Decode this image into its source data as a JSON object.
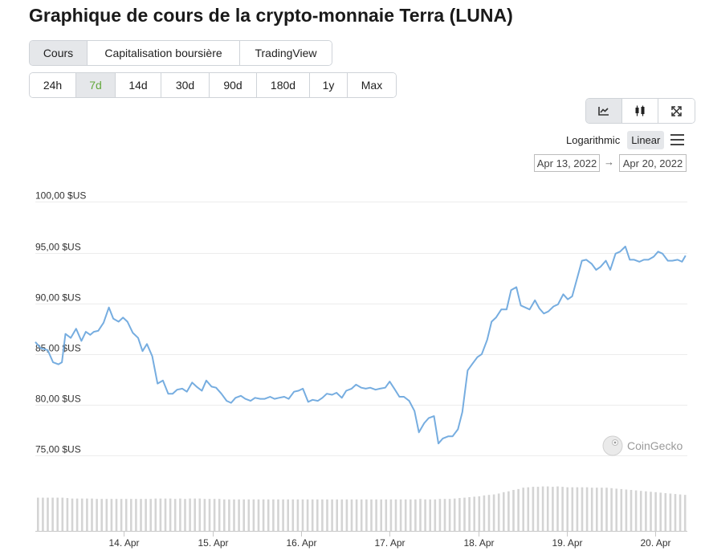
{
  "page_title": "Graphique de cours de la crypto-monnaie Terra (LUNA)",
  "view_tabs": [
    {
      "label": "Cours",
      "active": true
    },
    {
      "label": "Capitalisation boursière",
      "active": false
    },
    {
      "label": "TradingView",
      "active": false
    }
  ],
  "range_tabs": [
    {
      "label": "24h",
      "active": false
    },
    {
      "label": "7d",
      "active": true
    },
    {
      "label": "14d",
      "active": false
    },
    {
      "label": "30d",
      "active": false
    },
    {
      "label": "90d",
      "active": false
    },
    {
      "label": "180d",
      "active": false
    },
    {
      "label": "1y",
      "active": false
    },
    {
      "label": "Max",
      "active": false
    }
  ],
  "chart_type_buttons": [
    {
      "icon": "line-chart-icon",
      "active": true
    },
    {
      "icon": "candlestick-icon",
      "active": false
    },
    {
      "icon": "expand-icon",
      "active": false
    }
  ],
  "scale": {
    "logarithmic_label": "Logarithmic",
    "linear_label": "Linear",
    "active": "linear"
  },
  "date_range": {
    "from": "Apr 13, 2022",
    "to": "Apr 20, 2022",
    "arrow": "→"
  },
  "watermark": "CoinGecko",
  "colors": {
    "line": "#76ade0",
    "volume": "#d4d4d4",
    "active_range": "#63a83c",
    "active_bg": "#e5e7ea"
  },
  "chart_data": {
    "type": "line",
    "title": "",
    "xlabel": "",
    "ylabel": "",
    "ylim": [
      74,
      100.5
    ],
    "yticks": [
      {
        "value": 100,
        "label": "100,00 $US"
      },
      {
        "value": 95,
        "label": "95,00 $US"
      },
      {
        "value": 90,
        "label": "90,00 $US"
      },
      {
        "value": 85,
        "label": "85,00 $US"
      },
      {
        "value": 80,
        "label": "80,00 $US"
      },
      {
        "value": 75,
        "label": "75,00 $US"
      }
    ],
    "xticks": [
      {
        "day": 1.0,
        "label": "14. Apr"
      },
      {
        "day": 2.0,
        "label": "15. Apr"
      },
      {
        "day": 3.0,
        "label": "16. Apr"
      },
      {
        "day": 4.0,
        "label": "17. Apr"
      },
      {
        "day": 5.0,
        "label": "18. Apr"
      },
      {
        "day": 6.0,
        "label": "19. Apr"
      },
      {
        "day": 7.0,
        "label": "20. Apr"
      }
    ],
    "x_domain": [
      0,
      7.36
    ],
    "grid": true,
    "legend": "none",
    "series": [
      {
        "x": [
          0,
          0.06,
          0.14,
          0.2,
          0.26,
          0.3,
          0.34,
          0.4,
          0.46,
          0.52,
          0.57,
          0.62,
          0.66,
          0.71,
          0.77,
          0.83,
          0.88,
          0.94,
          0.99,
          1.04,
          1.1,
          1.16,
          1.21,
          1.26,
          1.32,
          1.38,
          1.44,
          1.5,
          1.55,
          1.6,
          1.66,
          1.71,
          1.77,
          1.82,
          1.88,
          1.93,
          1.99,
          2.04,
          2.1,
          2.16,
          2.21,
          2.26,
          2.32,
          2.37,
          2.43,
          2.48,
          2.54,
          2.59,
          2.65,
          2.7,
          2.75,
          2.81,
          2.86,
          2.92,
          2.97,
          3.02,
          3.08,
          3.13,
          3.19,
          3.24,
          3.29,
          3.35,
          3.4,
          3.46,
          3.51,
          3.57,
          3.62,
          3.68,
          3.73,
          3.78,
          3.84,
          3.89,
          3.95,
          4.0,
          4.06,
          4.11,
          4.16,
          4.22,
          4.28,
          4.33,
          4.39,
          4.44,
          4.5,
          4.55,
          4.6,
          4.66,
          4.71,
          4.77,
          4.82,
          4.88,
          4.93,
          4.99,
          5.04,
          5.1,
          5.15,
          5.2,
          5.26,
          5.32,
          5.37,
          5.43,
          5.48,
          5.53,
          5.58,
          5.64,
          5.69,
          5.74,
          5.79,
          5.85,
          5.9,
          5.96,
          6.01,
          6.06,
          6.12,
          6.17,
          6.22,
          6.28,
          6.33,
          6.38,
          6.44,
          6.49,
          6.55,
          6.6,
          6.66,
          6.71,
          6.76,
          6.82,
          6.87,
          6.92,
          6.98,
          7.03,
          7.08,
          7.14,
          7.19,
          7.25,
          7.3,
          7.34
        ],
        "y": [
          86.2,
          85.6,
          85.4,
          84.2,
          84.0,
          84.2,
          87.0,
          86.6,
          87.5,
          86.3,
          87.2,
          86.9,
          87.2,
          87.3,
          88.1,
          89.6,
          88.5,
          88.2,
          88.6,
          88.2,
          87.1,
          86.6,
          85.3,
          86.0,
          84.8,
          82.1,
          82.4,
          81.1,
          81.1,
          81.5,
          81.6,
          81.3,
          82.2,
          81.8,
          81.4,
          82.4,
          81.8,
          81.7,
          81.1,
          80.4,
          80.2,
          80.7,
          80.9,
          80.6,
          80.4,
          80.7,
          80.6,
          80.6,
          80.8,
          80.6,
          80.7,
          80.8,
          80.6,
          81.3,
          81.4,
          81.6,
          80.3,
          80.5,
          80.4,
          80.7,
          81.1,
          81.0,
          81.2,
          80.7,
          81.4,
          81.6,
          82.0,
          81.7,
          81.6,
          81.7,
          81.5,
          81.6,
          81.7,
          82.3,
          81.5,
          80.8,
          80.8,
          80.4,
          79.4,
          77.3,
          78.2,
          78.7,
          78.9,
          76.2,
          76.7,
          76.9,
          76.9,
          77.6,
          79.3,
          83.4,
          84.0,
          84.7,
          85.0,
          86.4,
          88.2,
          88.6,
          89.4,
          89.4,
          91.3,
          91.6,
          89.8,
          89.6,
          89.4,
          90.3,
          89.5,
          89.0,
          89.2,
          89.7,
          89.9,
          90.9,
          90.4,
          90.7,
          92.6,
          94.2,
          94.3,
          93.9,
          93.3,
          93.6,
          94.2,
          93.3,
          94.9,
          95.1,
          95.6,
          94.3,
          94.3,
          94.1,
          94.3,
          94.3,
          94.6,
          95.1,
          94.9,
          94.2,
          94.2,
          94.3,
          94.1,
          94.7
        ]
      }
    ],
    "volume": [
      0.74,
      0.74,
      0.74,
      0.74,
      0.74,
      0.74,
      0.73,
      0.72,
      0.72,
      0.72,
      0.72,
      0.72,
      0.71,
      0.71,
      0.71,
      0.71,
      0.71,
      0.71,
      0.71,
      0.71,
      0.71,
      0.71,
      0.71,
      0.71,
      0.72,
      0.72,
      0.72,
      0.72,
      0.71,
      0.72,
      0.71,
      0.72,
      0.72,
      0.72,
      0.71,
      0.71,
      0.71,
      0.71,
      0.7,
      0.7,
      0.7,
      0.7,
      0.7,
      0.7,
      0.7,
      0.7,
      0.7,
      0.7,
      0.7,
      0.7,
      0.7,
      0.7,
      0.7,
      0.7,
      0.7,
      0.7,
      0.7,
      0.7,
      0.7,
      0.7,
      0.7,
      0.7,
      0.7,
      0.7,
      0.7,
      0.7,
      0.7,
      0.7,
      0.7,
      0.7,
      0.7,
      0.7,
      0.7,
      0.7,
      0.7,
      0.7,
      0.7,
      0.7,
      0.71,
      0.7,
      0.7,
      0.7,
      0.71,
      0.71,
      0.71,
      0.72,
      0.73,
      0.74,
      0.75,
      0.76,
      0.77,
      0.79,
      0.8,
      0.81,
      0.83,
      0.86,
      0.88,
      0.91,
      0.93,
      0.96,
      0.97,
      0.98,
      0.98,
      0.99,
      0.99,
      0.98,
      0.99,
      0.98,
      0.97,
      0.97,
      0.97,
      0.97,
      0.97,
      0.96,
      0.96,
      0.96,
      0.96,
      0.95,
      0.94,
      0.93,
      0.92,
      0.91,
      0.9,
      0.89,
      0.88,
      0.87,
      0.86,
      0.85,
      0.84,
      0.83,
      0.82,
      0.81,
      0.8
    ]
  }
}
